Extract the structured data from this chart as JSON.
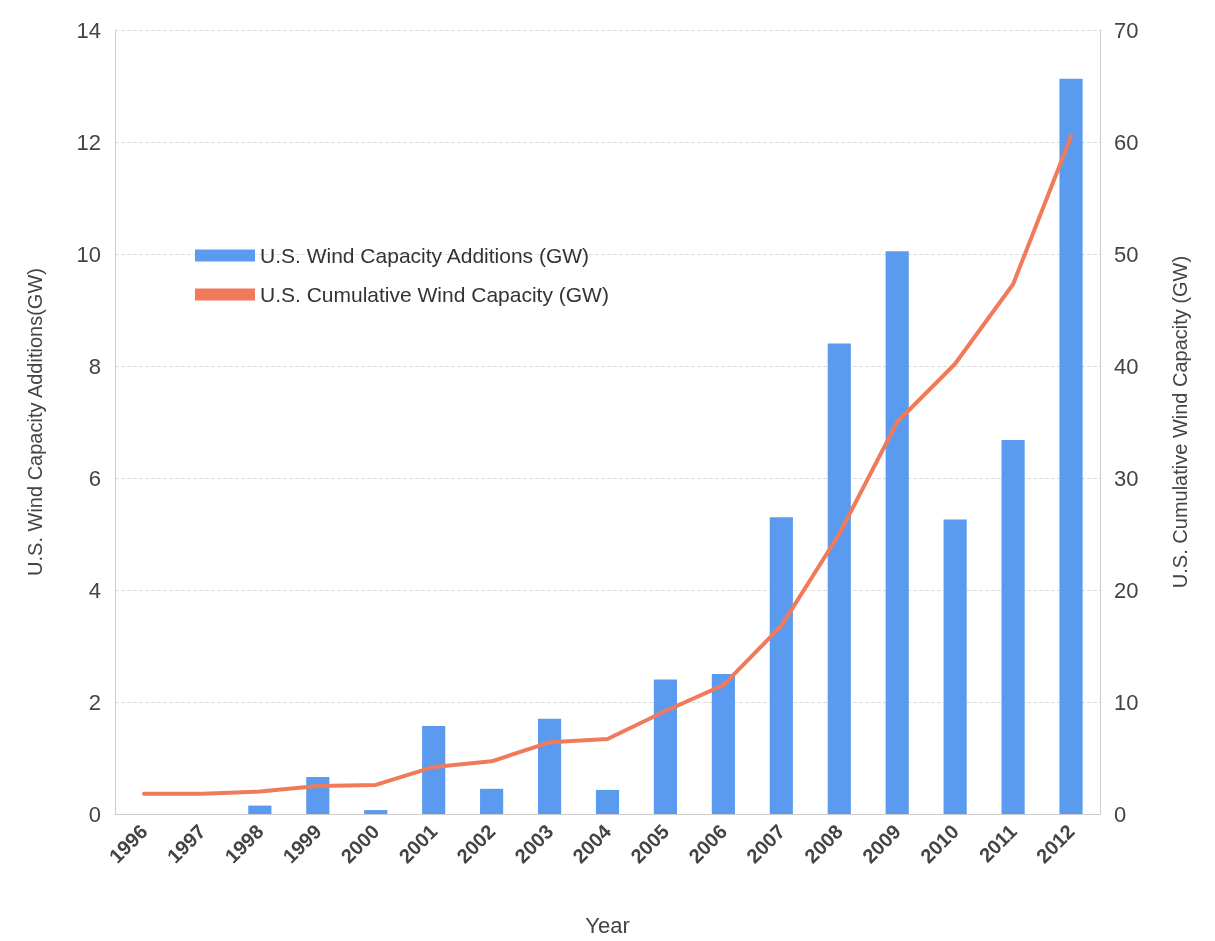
{
  "chart_data": {
    "type": "bar",
    "xlabel": "Year",
    "ylabel": "U.S. Wind Capacity Additions(GW)",
    "y2label": "U.S. Cumulative Wind Capacity (GW)",
    "categories": [
      "1996",
      "1997",
      "1998",
      "1999",
      "2000",
      "2001",
      "2002",
      "2003",
      "2004",
      "2005",
      "2006",
      "2007",
      "2008",
      "2009",
      "2010",
      "2011",
      "2012"
    ],
    "series": [
      {
        "name": "U.S. Wind Capacity Additions (GW)",
        "color": "#5b9bef",
        "values": [
          0,
          0,
          0.15,
          0.66,
          0.07,
          1.57,
          0.45,
          1.7,
          0.43,
          2.4,
          2.5,
          5.3,
          8.4,
          10.05,
          5.26,
          6.68,
          13.13
        ]
      },
      {
        "name": "U.S. Cumulative Wind Capacity (GW)",
        "type": "line",
        "axis": "y2",
        "color": "#f07a5a",
        "values": [
          1.8,
          1.8,
          2,
          2.5,
          2.6,
          4.2,
          4.7,
          6.4,
          6.7,
          9.2,
          11.5,
          16.8,
          25,
          35,
          40.2,
          47.3,
          60.5
        ]
      }
    ],
    "ylim": [
      0,
      14
    ],
    "yticks": [
      0,
      2,
      4,
      6,
      8,
      10,
      12,
      14
    ],
    "y2lim": [
      0,
      70
    ],
    "y2ticks": [
      0,
      10,
      20,
      30,
      40,
      50,
      60,
      70
    ],
    "grid": "y",
    "legend": "top left",
    "marker": "none",
    "line_style": "solid"
  }
}
